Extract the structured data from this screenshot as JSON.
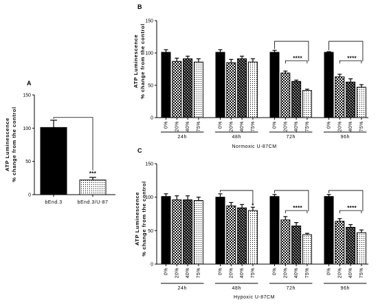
{
  "figure": {
    "panels": [
      {
        "letter": "A",
        "ylabel_line1": "ATP Luminescence",
        "ylabel_line2": "% change from the control",
        "yticks": [
          "0",
          "50",
          "100",
          "150"
        ]
      },
      {
        "letter": "B",
        "ylabel_line1": "ATP Luminescence",
        "ylabel_line2": "% change from the control",
        "yticks": [
          "0",
          "50",
          "100",
          "150"
        ],
        "footer": "Normoxic U-87CM"
      },
      {
        "letter": "C",
        "ylabel_line1": "ATP Luminescence",
        "ylabel_line2": "% change from the control",
        "yticks": [
          "0",
          "50",
          "100",
          "150"
        ],
        "footer": "Hypoxic U-87CM"
      }
    ]
  },
  "chart_data": [
    {
      "type": "bar",
      "panel": "A",
      "categories": [
        "bEnd.3",
        "bEnd.3/U-87"
      ],
      "values": [
        101,
        22
      ],
      "errors": [
        11,
        4
      ],
      "ylim": [
        0,
        150
      ],
      "patterns": [
        "black",
        "dots"
      ],
      "significance": [
        {
          "from": 0,
          "to": 1,
          "label": "***"
        }
      ]
    },
    {
      "type": "bar",
      "panel": "B",
      "groups": [
        "24h",
        "48h",
        "72h",
        "96h"
      ],
      "categories": [
        "0%",
        "20%",
        "40%",
        "75%"
      ],
      "series": [
        {
          "values": [
            101,
            87,
            91,
            86
          ],
          "errors": [
            4,
            5,
            4,
            5
          ]
        },
        {
          "values": [
            101,
            85,
            91,
            86
          ],
          "errors": [
            4,
            5,
            4,
            5
          ]
        },
        {
          "values": [
            101,
            69,
            56,
            42
          ],
          "errors": [
            3,
            3,
            2,
            2
          ]
        },
        {
          "values": [
            101,
            63,
            55,
            47
          ],
          "errors": [
            1,
            4,
            5,
            4
          ]
        }
      ],
      "patterns": [
        "black",
        "checker",
        "checker-dark",
        "dots"
      ],
      "ylim": [
        0,
        150
      ],
      "significance": [
        {
          "group": 2,
          "bracket_y": 118,
          "label": "****",
          "sub_bracket_y": 88
        },
        {
          "group": 3,
          "bracket_y": 118,
          "label": "****",
          "sub_bracket_y": 88
        }
      ]
    },
    {
      "type": "bar",
      "panel": "C",
      "groups": [
        "24h",
        "48h",
        "72h",
        "96h"
      ],
      "categories": [
        "0%",
        "20%",
        "40%",
        "75%"
      ],
      "series": [
        {
          "values": [
            101,
            96,
            96,
            95
          ],
          "errors": [
            4,
            6,
            6,
            5
          ]
        },
        {
          "values": [
            100,
            87,
            84,
            80
          ],
          "errors": [
            5,
            5,
            5,
            5
          ]
        },
        {
          "values": [
            101,
            66,
            57,
            44
          ],
          "errors": [
            3,
            5,
            5,
            2
          ]
        },
        {
          "values": [
            101,
            64,
            55,
            47
          ],
          "errors": [
            3,
            4,
            4,
            4
          ]
        }
      ],
      "patterns": [
        "black",
        "checker",
        "checker-dark",
        "dots"
      ],
      "ylim": [
        0,
        150
      ],
      "significance": [
        {
          "group": 1,
          "bracket_y": 110,
          "label": "*",
          "sub_bracket_y": null
        },
        {
          "group": 2,
          "bracket_y": 110,
          "label": "****",
          "sub_bracket_y": 80
        },
        {
          "group": 3,
          "bracket_y": 110,
          "label": "****",
          "sub_bracket_y": 80
        }
      ]
    }
  ]
}
